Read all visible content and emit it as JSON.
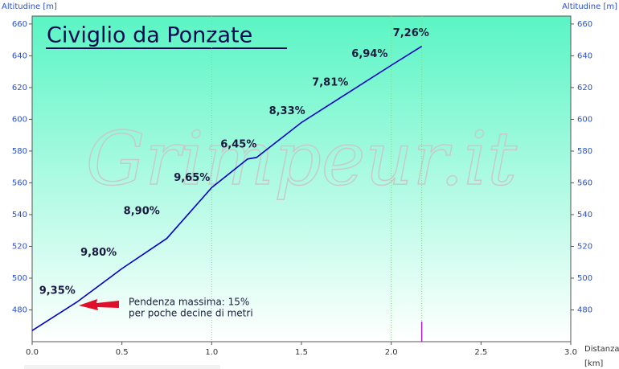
{
  "chart_data": {
    "type": "line",
    "title": "Civiglio da Ponzate",
    "watermark": "Grimpeur.it",
    "y_label": "Altitudine [m]",
    "y2_label": "Altitudine [m]",
    "x_label": "Distanza",
    "x_unit": "[km]",
    "x": [
      0,
      0.25,
      0.5,
      0.75,
      1.0,
      1.2,
      1.25,
      1.5,
      1.75,
      2.0,
      2.17
    ],
    "series": [
      {
        "color": "#0000cc",
        "values": [
          467,
          485,
          506,
          525,
          557,
          575,
          576,
          598,
          616,
          634,
          646
        ]
      }
    ],
    "xlim": [
      0,
      3.0
    ],
    "ylim": [
      460,
      665
    ],
    "xticks": [
      {
        "value": 0,
        "label": "0.0"
      },
      0.5,
      {
        "value": 1,
        "label": "1.0"
      },
      1.5,
      {
        "value": 2,
        "label": "2.0"
      },
      2.5,
      {
        "value": 3,
        "label": "3.0"
      }
    ],
    "yticks": [
      480,
      500,
      520,
      540,
      560,
      580,
      600,
      620,
      640,
      660
    ],
    "vgrid": [
      1.0,
      2.0
    ],
    "end_marker": 2.17,
    "annotations": [
      {
        "text": "9,35%",
        "x": 0.14,
        "y": 492
      },
      {
        "text": "9,80%",
        "x": 0.37,
        "y": 516
      },
      {
        "text": "8,90%",
        "x": 0.61,
        "y": 542
      },
      {
        "text": "9,65%",
        "x": 0.89,
        "y": 563
      },
      {
        "text": "6,45%",
        "x": 1.15,
        "y": 584
      },
      {
        "text": "8,33%",
        "x": 1.42,
        "y": 605
      },
      {
        "text": "7,81%",
        "x": 1.66,
        "y": 623
      },
      {
        "text": "6,94%",
        "x": 1.88,
        "y": 641
      },
      {
        "text": "7,26%",
        "x": 2.11,
        "y": 654
      }
    ],
    "note": [
      "Pendenza massima: 15%",
      "per poche decine di metri"
    ]
  }
}
